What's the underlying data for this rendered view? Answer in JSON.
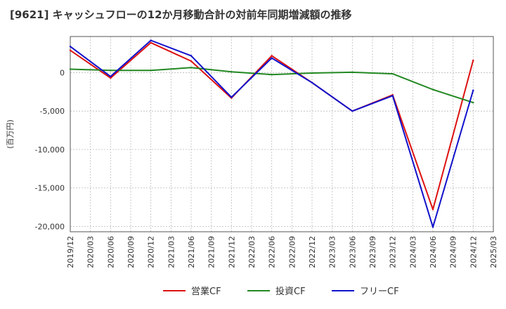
{
  "chart_data": {
    "type": "line",
    "title": "[9621]  キャッシュフローの12か月移動合計の対前年同期増減額の推移",
    "ylabel": "(百万円)",
    "xlabel": "",
    "ylim": [
      -20700,
      4700
    ],
    "yticks": [
      0,
      -5000,
      -10000,
      -15000,
      -20000
    ],
    "ytick_labels": [
      "0",
      "-5,000",
      "-10,000",
      "-15,000",
      "-20,000"
    ],
    "x_tick_labels": [
      "2019/12",
      "2020/03",
      "2020/06",
      "2020/09",
      "2020/12",
      "2021/03",
      "2021/06",
      "2021/09",
      "2021/12",
      "2022/03",
      "2022/06",
      "2022/09",
      "2022/12",
      "2023/03",
      "2023/06",
      "2023/09",
      "2023/12",
      "2024/03",
      "2024/06",
      "2024/09",
      "2024/12",
      "2025/03"
    ],
    "grid": true,
    "legend_position": "bottom",
    "series": [
      {
        "name": "営業CF",
        "color": "#dd1111",
        "x": [
          0,
          2,
          4,
          6,
          8,
          10,
          12,
          14,
          16,
          18,
          20
        ],
        "values": [
          2900,
          -700,
          3900,
          1500,
          -3300,
          2200,
          -1300,
          -5000,
          -2900,
          -17800,
          1600
        ]
      },
      {
        "name": "投資CF",
        "color": "#228822",
        "x": [
          0,
          2,
          4,
          6,
          8,
          10,
          12,
          14,
          16,
          18,
          20
        ],
        "values": [
          450,
          300,
          300,
          650,
          100,
          -250,
          -50,
          50,
          -150,
          -2200,
          -3900
        ]
      },
      {
        "name": "フリーCF",
        "color": "#1111cc",
        "x": [
          0,
          2,
          4,
          6,
          8,
          10,
          12,
          14,
          16,
          18,
          20
        ],
        "values": [
          3400,
          -500,
          4200,
          2200,
          -3200,
          1900,
          -1300,
          -5000,
          -3000,
          -20100,
          -2300
        ]
      }
    ]
  }
}
